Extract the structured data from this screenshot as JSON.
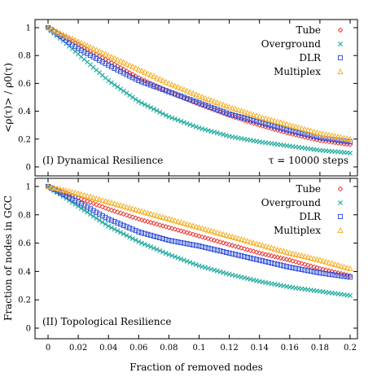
{
  "figure": {
    "xlabel": "Fraction of removed nodes",
    "xticks": [
      "0",
      "0.02",
      "0.04",
      "0.06",
      "0.08",
      "0.1",
      "0.12",
      "0.14",
      "0.16",
      "0.18",
      "0.2"
    ]
  },
  "legend": [
    {
      "name": "Tube",
      "color": "#e8312a",
      "marker": "diamond"
    },
    {
      "name": "Overground",
      "color": "#1aa99c",
      "marker": "x"
    },
    {
      "name": "DLR",
      "color": "#2547d8",
      "marker": "square"
    },
    {
      "name": "Multiplex",
      "color": "#f5ad1f",
      "marker": "triangle"
    }
  ],
  "panels": [
    {
      "ylabel": "<ρ(τ)> / ρ0(τ)",
      "yticks": [
        "0",
        "0.2",
        "0.4",
        "0.6",
        "0.8",
        "1"
      ],
      "annotation_left": "(I) Dynamical Resilience",
      "annotation_right": "τ = 10000 steps"
    },
    {
      "ylabel": "Fraction of nodes in GCC",
      "yticks": [
        "0",
        "0.2",
        "0.4",
        "0.6",
        "0.8",
        "1"
      ],
      "annotation_left": "(II) Topological Resilience",
      "annotation_right": ""
    }
  ],
  "chart_data": [
    {
      "type": "scatter",
      "title": "(I) Dynamical Resilience",
      "annotation": "τ = 10000 steps",
      "xlabel": "Fraction of removed nodes",
      "ylabel": "<ρ(τ)> / ρ0(τ)",
      "xlim": [
        0,
        0.2
      ],
      "ylim": [
        0,
        1
      ],
      "legend_position": "top-right",
      "x": [
        0,
        0.02,
        0.04,
        0.06,
        0.08,
        0.1,
        0.12,
        0.14,
        0.16,
        0.18,
        0.2
      ],
      "series": [
        {
          "name": "Tube",
          "values": [
            1.0,
            0.88,
            0.76,
            0.64,
            0.54,
            0.45,
            0.37,
            0.3,
            0.24,
            0.19,
            0.16
          ]
        },
        {
          "name": "Overground",
          "values": [
            1.0,
            0.81,
            0.62,
            0.47,
            0.36,
            0.28,
            0.22,
            0.18,
            0.15,
            0.12,
            0.1
          ]
        },
        {
          "name": "DLR",
          "values": [
            1.0,
            0.85,
            0.73,
            0.62,
            0.54,
            0.46,
            0.38,
            0.32,
            0.26,
            0.21,
            0.18
          ]
        },
        {
          "name": "Multiplex",
          "values": [
            1.0,
            0.9,
            0.8,
            0.7,
            0.6,
            0.51,
            0.43,
            0.36,
            0.3,
            0.24,
            0.2
          ]
        }
      ]
    },
    {
      "type": "scatter",
      "title": "(II) Topological Resilience",
      "xlabel": "Fraction of removed nodes",
      "ylabel": "Fraction of nodes in GCC",
      "xlim": [
        0,
        0.2
      ],
      "ylim": [
        0,
        1
      ],
      "legend_position": "top-right",
      "x": [
        0,
        0.02,
        0.04,
        0.06,
        0.08,
        0.1,
        0.12,
        0.14,
        0.16,
        0.18,
        0.2
      ],
      "series": [
        {
          "name": "Tube",
          "values": [
            1.0,
            0.92,
            0.84,
            0.77,
            0.71,
            0.65,
            0.59,
            0.53,
            0.48,
            0.42,
            0.37
          ]
        },
        {
          "name": "Overground",
          "values": [
            1.0,
            0.86,
            0.72,
            0.61,
            0.52,
            0.44,
            0.38,
            0.33,
            0.29,
            0.26,
            0.23
          ]
        },
        {
          "name": "DLR",
          "values": [
            1.0,
            0.89,
            0.77,
            0.68,
            0.62,
            0.58,
            0.53,
            0.48,
            0.43,
            0.39,
            0.36
          ]
        },
        {
          "name": "Multiplex",
          "values": [
            1.0,
            0.95,
            0.89,
            0.83,
            0.77,
            0.71,
            0.65,
            0.59,
            0.53,
            0.48,
            0.42
          ]
        }
      ]
    }
  ]
}
